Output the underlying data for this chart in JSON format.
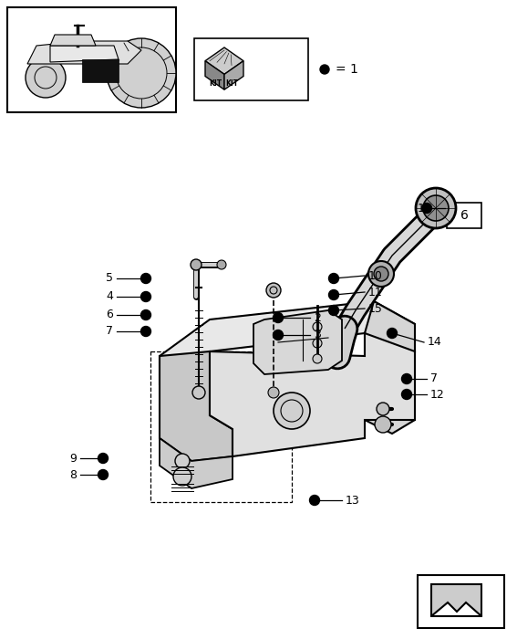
{
  "bg_color": "#ffffff",
  "line_color": "#000000",
  "fig_width": 5.67,
  "fig_height": 7.0,
  "dpi": 100
}
